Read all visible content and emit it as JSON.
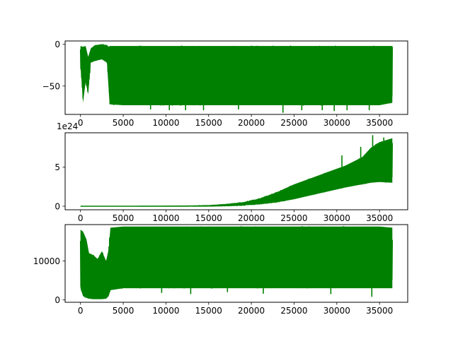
{
  "chart_data": [
    {
      "type": "line",
      "color": "#008000",
      "xlim": [
        -1800,
        38300
      ],
      "ylim": [
        -84,
        4
      ],
      "xticks": [
        {
          "value": 0,
          "label": "0"
        },
        {
          "value": 5000,
          "label": "5000"
        },
        {
          "value": 10000,
          "label": "10000"
        },
        {
          "value": 15000,
          "label": "15000"
        },
        {
          "value": 20000,
          "label": "20000"
        },
        {
          "value": 25000,
          "label": "25000"
        },
        {
          "value": 30000,
          "label": "30000"
        },
        {
          "value": 35000,
          "label": "35000"
        }
      ],
      "yticks": [
        {
          "value": 0,
          "label": "0"
        },
        {
          "value": -50,
          "label": "−50"
        }
      ],
      "envelope": {
        "x": [
          0,
          300,
          600,
          900,
          1200,
          1700,
          2500,
          3100,
          3300,
          3400,
          5000,
          10000,
          15000,
          20000,
          25000,
          30000,
          35000,
          36500
        ],
        "upper": [
          -2,
          -3,
          -2,
          -15,
          -5,
          -1,
          0,
          -1,
          -3,
          -2,
          -2,
          -2,
          -2,
          -2,
          -2,
          -2,
          -2,
          -2
        ],
        "lower": [
          -25,
          -70,
          -45,
          -60,
          -22,
          -20,
          -18,
          -22,
          -55,
          -72,
          -73,
          -73,
          -73,
          -73,
          -73,
          -73,
          -73,
          -70
        ]
      },
      "spikes": [
        {
          "x": 8200,
          "y": -78
        },
        {
          "x": 10400,
          "y": -79
        },
        {
          "x": 12300,
          "y": -79
        },
        {
          "x": 14400,
          "y": -79
        },
        {
          "x": 18500,
          "y": -78
        },
        {
          "x": 23700,
          "y": -82
        },
        {
          "x": 25900,
          "y": -79
        },
        {
          "x": 28300,
          "y": -79
        },
        {
          "x": 29700,
          "y": -80
        },
        {
          "x": 31200,
          "y": -79
        },
        {
          "x": 33800,
          "y": -79
        }
      ]
    },
    {
      "type": "line",
      "color": "#008000",
      "offset_text": "1e24",
      "xlim": [
        -1800,
        38300
      ],
      "ylim": [
        -0.45,
        9.4
      ],
      "xticks": [
        {
          "value": 0,
          "label": "0"
        },
        {
          "value": 5000,
          "label": "5000"
        },
        {
          "value": 10000,
          "label": "10000"
        },
        {
          "value": 15000,
          "label": "15000"
        },
        {
          "value": 20000,
          "label": "20000"
        },
        {
          "value": 25000,
          "label": "25000"
        },
        {
          "value": 30000,
          "label": "30000"
        },
        {
          "value": 35000,
          "label": "35000"
        }
      ],
      "yticks": [
        {
          "value": 0,
          "label": "0"
        },
        {
          "value": 5,
          "label": "5"
        }
      ],
      "envelope": {
        "x": [
          0,
          5000,
          10000,
          13000,
          15000,
          17000,
          19000,
          21000,
          23000,
          25000,
          27000,
          29000,
          31000,
          33000,
          34000,
          35000,
          36500
        ],
        "upper": [
          0,
          0,
          0.02,
          0.05,
          0.1,
          0.25,
          0.5,
          1.0,
          1.8,
          2.8,
          3.6,
          4.4,
          5.2,
          6.3,
          7.5,
          8.2,
          8.7
        ],
        "lower": [
          0,
          0,
          0,
          0,
          0,
          0.03,
          0.1,
          0.25,
          0.5,
          0.9,
          1.4,
          1.9,
          2.4,
          2.8,
          3.0,
          3.1,
          3.0
        ]
      },
      "spikes": [
        {
          "x": 34200,
          "y": 9.1
        },
        {
          "x": 35500,
          "y": 8.8
        },
        {
          "x": 32800,
          "y": 7.6
        },
        {
          "x": 30600,
          "y": 6.5
        }
      ]
    },
    {
      "type": "line",
      "color": "#008000",
      "xlim": [
        -1800,
        38300
      ],
      "ylim": [
        -600,
        19300
      ],
      "xticks": [
        {
          "value": 0,
          "label": "0"
        },
        {
          "value": 5000,
          "label": "5000"
        },
        {
          "value": 10000,
          "label": "10000"
        },
        {
          "value": 15000,
          "label": "15000"
        },
        {
          "value": 20000,
          "label": "20000"
        },
        {
          "value": 25000,
          "label": "25000"
        },
        {
          "value": 30000,
          "label": "30000"
        },
        {
          "value": 35000,
          "label": "35000"
        }
      ],
      "yticks": [
        {
          "value": 0,
          "label": "0"
        },
        {
          "value": 10000,
          "label": "10000"
        }
      ],
      "envelope": {
        "x": [
          0,
          300,
          700,
          1000,
          1500,
          2000,
          2500,
          3000,
          3300,
          3500,
          5000,
          10000,
          15000,
          20000,
          25000,
          30000,
          35000,
          36500
        ],
        "upper": [
          18000,
          17500,
          15500,
          12000,
          11500,
          10500,
          12500,
          10000,
          13000,
          18500,
          18800,
          18800,
          18800,
          18800,
          18800,
          18800,
          18800,
          18500
        ],
        "lower": [
          3000,
          1000,
          500,
          300,
          200,
          200,
          200,
          300,
          1000,
          2500,
          3000,
          3000,
          3000,
          3000,
          3000,
          3000,
          3000,
          3000
        ]
      },
      "spikes": [
        {
          "x": 9500,
          "y": 1800
        },
        {
          "x": 12900,
          "y": 1500
        },
        {
          "x": 17200,
          "y": 2000
        },
        {
          "x": 21400,
          "y": 1600
        },
        {
          "x": 29300,
          "y": 1500
        },
        {
          "x": 34100,
          "y": 800
        }
      ]
    }
  ]
}
